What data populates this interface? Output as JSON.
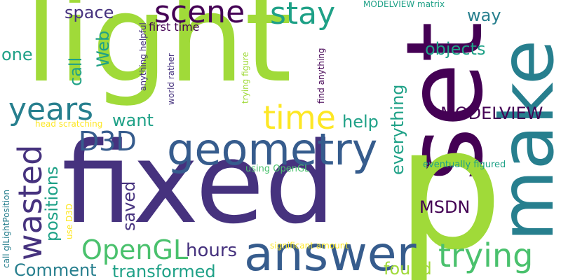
{
  "words": {
    "light": "light",
    "set": "set",
    "make": "make",
    "fixed": "fixed",
    "p": "p",
    "geometry": "geometry",
    "answer": "answer",
    "scene": "scene",
    "stay": "stay",
    "years": "years",
    "wasted": "wasted",
    "time": "time",
    "trying": "trying",
    "d3d": "D3D",
    "opengl": "OpenGL",
    "hours": "hours",
    "modelview": "MODELVIEW",
    "msdn": "MSDN",
    "space": "space",
    "way": "way",
    "objects": "objects",
    "one": "one",
    "call": "call",
    "web": "Web",
    "want": "want",
    "help": "help",
    "everything": "everything",
    "positions": "positions",
    "saved": "saved",
    "comment": "Comment",
    "transformed": "transformed",
    "found": "found",
    "first_time": "first time",
    "modelview_matrix": "MODELVIEW matrix",
    "anything_helpful": "anything helpful",
    "world_rather": "world rather",
    "trying_figure": "trying figure",
    "find_anything": "find anything",
    "head_scratching": "head scratching",
    "using_opengl": "using OpenGL",
    "eventually_figured": "eventually figured",
    "use_d3d": "use D3D",
    "significant_amount": "significant amount",
    "call_gllightposition": "call glLightPosition"
  },
  "palette": {
    "dark_purple": "#440154",
    "indigo": "#46327e",
    "blue": "#365c8d",
    "steel": "#277f8e",
    "teal": "#1fa187",
    "green": "#4ac16d",
    "lime": "#a0da39",
    "yellow": "#fde725"
  }
}
